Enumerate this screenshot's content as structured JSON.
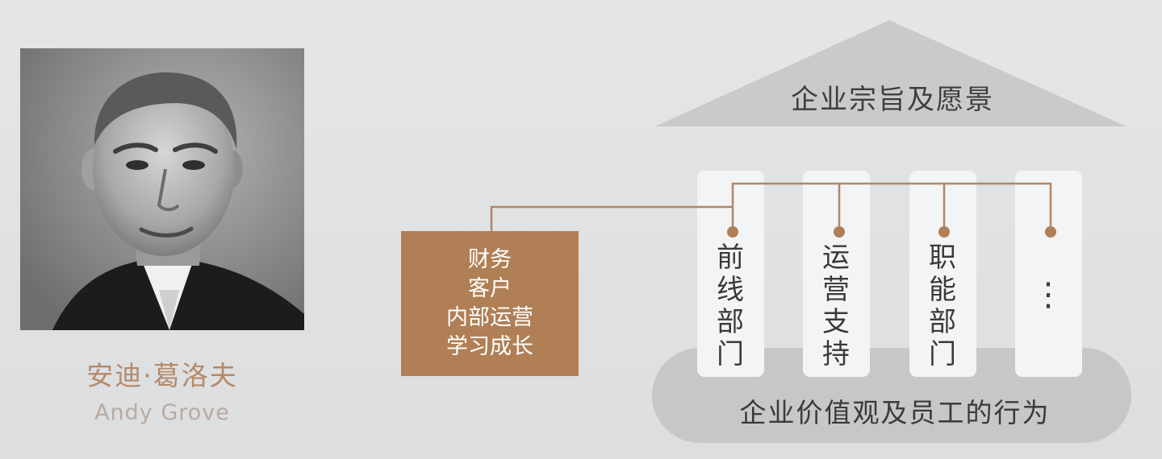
{
  "person": {
    "name_cn": "安迪·葛洛夫",
    "name_en": "Andy Grove"
  },
  "house": {
    "roof_label": "企业宗旨及愿景",
    "base_label": "企业价值观及员工的行为",
    "pillars": [
      {
        "label": "前\n线\n部\n门"
      },
      {
        "label": "运\n营\n支\n持"
      },
      {
        "label": "职\n能\n部\n门"
      },
      {
        "label": "⋮"
      }
    ]
  },
  "scorecard": {
    "lines": [
      "财务",
      "客户",
      "内部运营",
      "学习成长"
    ]
  },
  "colors": {
    "accent": "#b07f55",
    "connector": "#b0866a",
    "roof": "#c9cacb",
    "base": "#c6c7c8",
    "pillar": "#f3f4f5"
  }
}
